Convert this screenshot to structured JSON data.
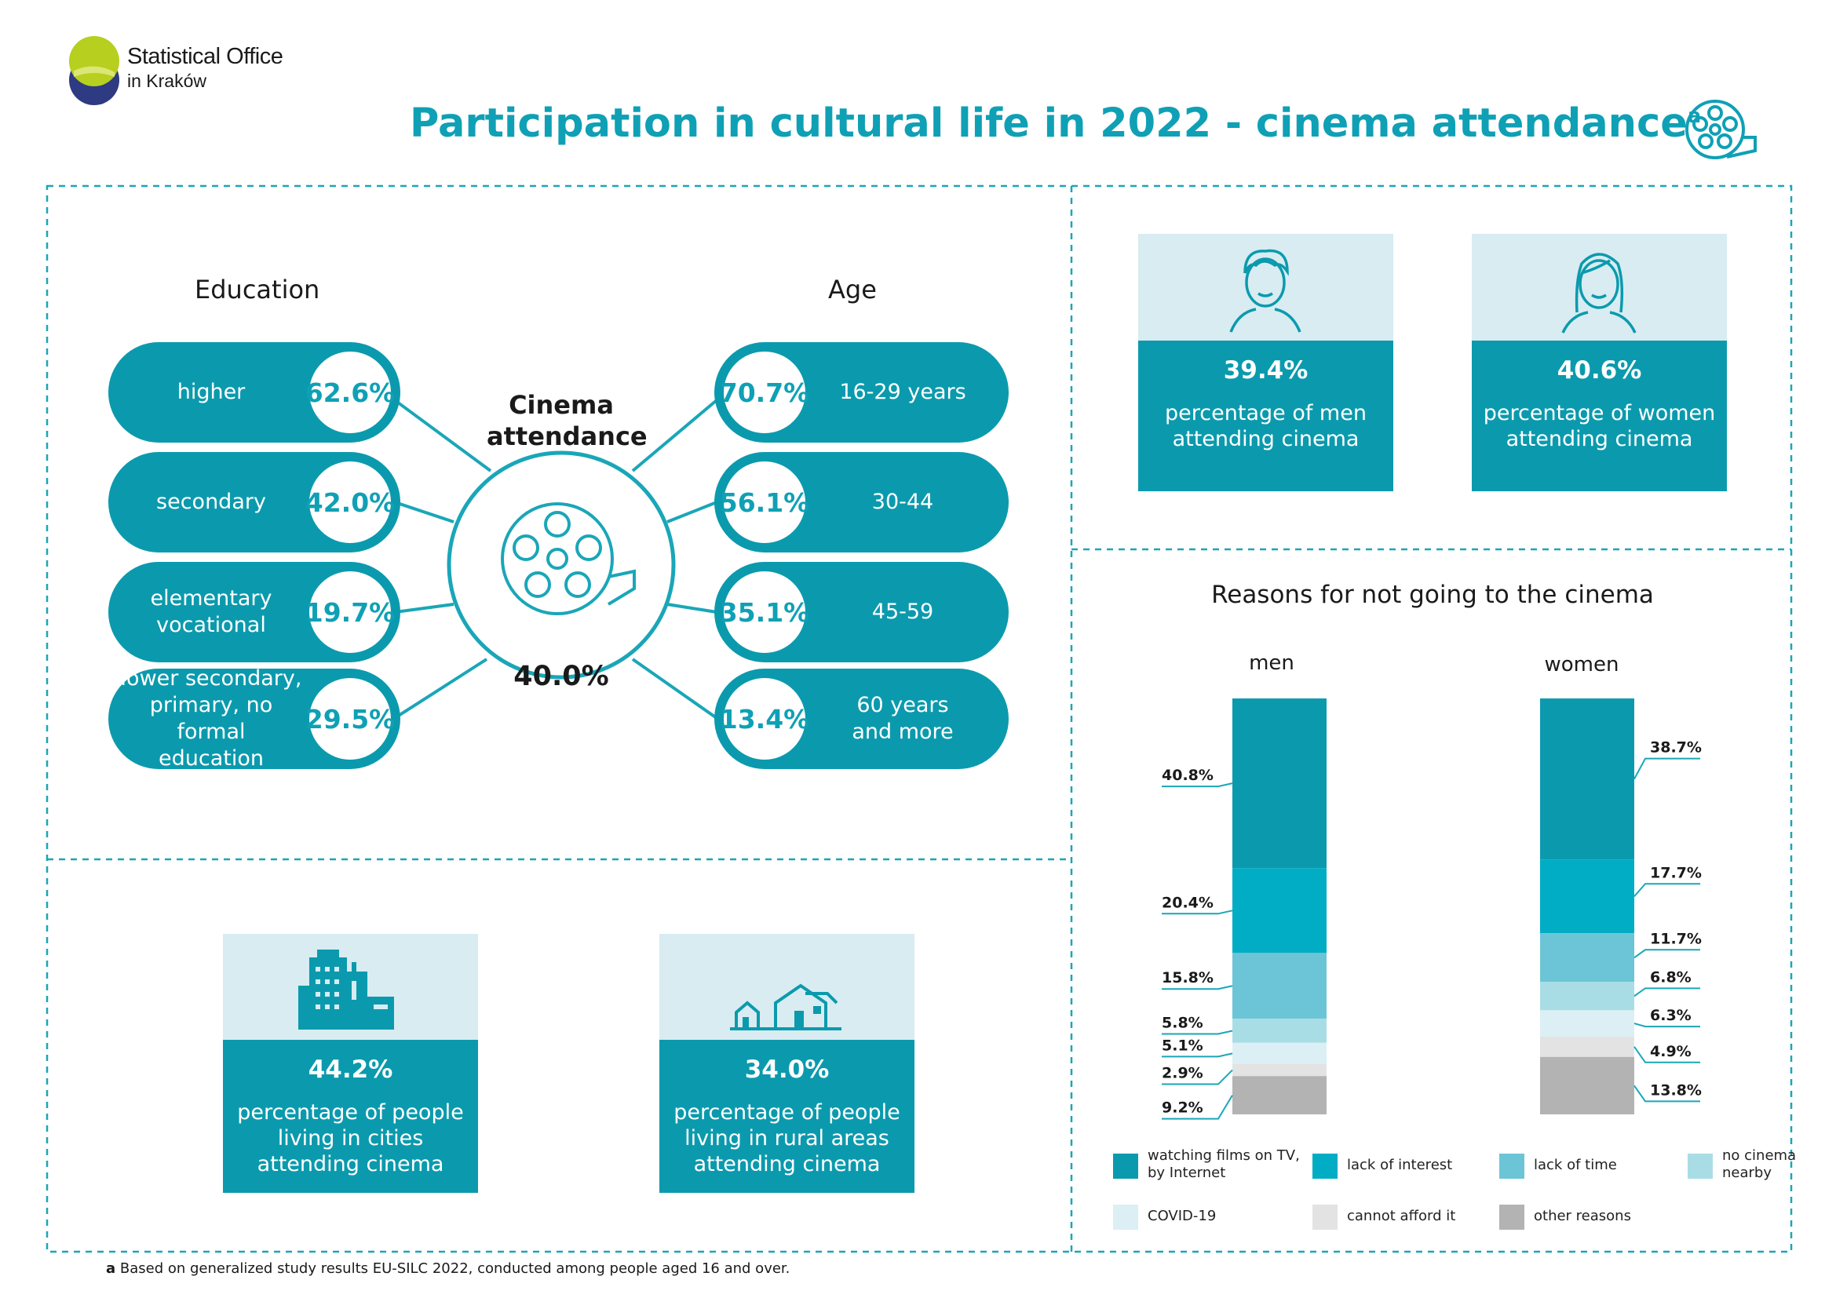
{
  "header": {
    "org_line1": "Statistical Office",
    "org_line2": "in Kraków",
    "title": "Participation in cultural life in 2022 - cinema attendance",
    "title_sup": "a"
  },
  "education": {
    "heading": "Education",
    "items": [
      {
        "label": "higher",
        "value": "62.6%"
      },
      {
        "label": "secondary",
        "value": "42.0%"
      },
      {
        "label": "elementary\nvocational",
        "value": "19.7%"
      },
      {
        "label": "lower secondary,\nprimary, no formal\neducation",
        "value": "29.5%"
      }
    ]
  },
  "age": {
    "heading": "Age",
    "items": [
      {
        "label": "16-29 years",
        "value": "70.7%"
      },
      {
        "label": "30-44",
        "value": "56.1%"
      },
      {
        "label": "45-59",
        "value": "35.1%"
      },
      {
        "label": "60 years\nand more",
        "value": "13.4%"
      }
    ]
  },
  "center": {
    "label_line1": "Cinema",
    "label_line2": "attendance",
    "value": "40.0%"
  },
  "gender": {
    "men": {
      "value": "39.4%",
      "text_line1": "percentage of men",
      "text_line2": "attending cinema"
    },
    "women": {
      "value": "40.6%",
      "text_line1": "percentage of women",
      "text_line2": "attending cinema"
    }
  },
  "place": {
    "cities": {
      "value": "44.2%",
      "text_line1": "percentage of people",
      "text_line2": "living in cities",
      "text_line3": "attending cinema"
    },
    "rural": {
      "value": "34.0%",
      "text_line1": "percentage of people",
      "text_line2": "living in rural areas",
      "text_line3": "attending cinema"
    }
  },
  "footnote": {
    "mark": "a",
    "text": " Based on generalized study results EU-SILC 2022, conducted among people aged 16 and over."
  },
  "colors": {
    "teal_dark": "#0b9aad",
    "title_teal": "#0fa0b5",
    "light_blue_bg": "#d8ecf2"
  },
  "chart_data": {
    "type": "bar",
    "stacked": true,
    "title": "Reasons for not going to the cinema",
    "categories": [
      "men",
      "women"
    ],
    "series": [
      {
        "name": "watching films on TV, by Internet",
        "values": [
          40.8,
          38.7
        ],
        "labels": [
          "40.8%",
          "38.7%"
        ],
        "color": "#0b9aad"
      },
      {
        "name": "lack of interest",
        "values": [
          20.4,
          17.7
        ],
        "labels": [
          "20.4%",
          "17.7%"
        ],
        "color": "#00adc4"
      },
      {
        "name": "lack of time",
        "values": [
          15.8,
          11.7
        ],
        "labels": [
          "15.8%",
          "11.7%"
        ],
        "color": "#6cc5d6"
      },
      {
        "name": "no cinema nearby",
        "values": [
          5.8,
          6.8
        ],
        "labels": [
          "5.8%",
          "6.8%"
        ],
        "color": "#a9dde6"
      },
      {
        "name": "COVID-19",
        "values": [
          5.1,
          6.3
        ],
        "labels": [
          "5.1%",
          "6.3%"
        ],
        "color": "#dbeff5"
      },
      {
        "name": "cannot afford it",
        "values": [
          2.9,
          4.9
        ],
        "labels": [
          "2.9%",
          "4.9%"
        ],
        "color": "#e3e3e3"
      },
      {
        "name": "other reasons",
        "values": [
          9.2,
          13.8
        ],
        "labels": [
          "9.2%",
          "13.8%"
        ],
        "color": "#b3b3b3"
      }
    ],
    "legend": [
      {
        "line1": "watching films on TV,",
        "line2": "by Internet"
      },
      {
        "line1": "lack of interest",
        "line2": ""
      },
      {
        "line1": "lack of time",
        "line2": ""
      },
      {
        "line1": "no cinema",
        "line2": "nearby"
      },
      {
        "line1": "COVID-19",
        "line2": ""
      },
      {
        "line1": "cannot afford it",
        "line2": ""
      },
      {
        "line1": "other reasons",
        "line2": ""
      }
    ],
    "legend_position": "bottom"
  }
}
